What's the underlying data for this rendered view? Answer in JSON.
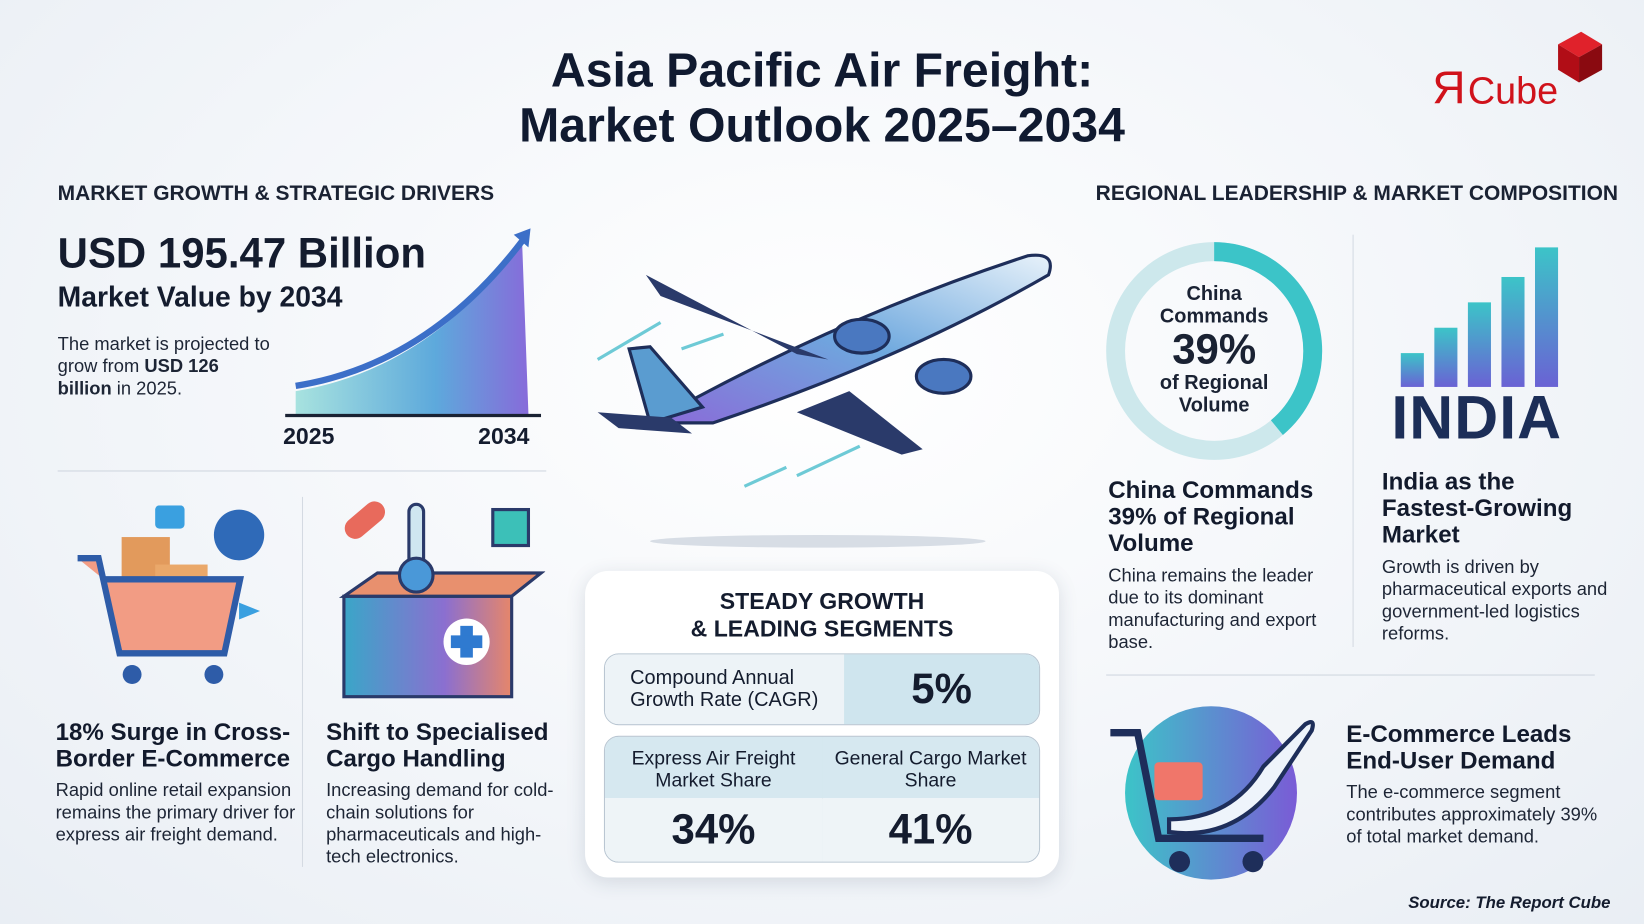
{
  "title": {
    "line1": "Asia Pacific Air Freight:",
    "line2": "Market Outlook 2025–2034"
  },
  "logo": {
    "text": "ЯCube",
    "color": "#d0121b"
  },
  "left": {
    "section_title": "MARKET GROWTH & STRATEGIC DRIVERS",
    "headline": "USD 195.47 Billion",
    "subheadline": "Market Value by 2034",
    "desc_pre": "The market is projected to grow from ",
    "desc_bold": "USD 126 billion",
    "desc_post": " in 2025.",
    "chart_start": "2025",
    "chart_end": "2034",
    "cards": [
      {
        "title": "18% Surge in Cross-Border E-Commerce",
        "text": "Rapid online retail expansion remains the primary driver for express air freight demand.",
        "icon": "shopping-cart-icon"
      },
      {
        "title": "Shift to Specialised Cargo Handling",
        "text": "Increasing demand for cold-chain solutions for pharmaceuticals and high-tech electronics.",
        "icon": "cargo-container-icon"
      }
    ]
  },
  "center": {
    "plane_icon": "airplane-icon",
    "card_title_1": "STEADY GROWTH",
    "card_title_2": "& LEADING SEGMENTS",
    "cagr_label": "Compound Annual Growth Rate (CAGR)",
    "cagr_value": "5%",
    "segments": [
      {
        "label": "Express Air Freight Market Share",
        "value": "34%"
      },
      {
        "label": "General Cargo Market Share",
        "value": "41%"
      }
    ]
  },
  "right": {
    "section_title": "REGIONAL LEADERSHIP & MARKET COMPOSITION",
    "donut": {
      "line1": "China",
      "line2": "Commands",
      "value": "39%",
      "line3": "of Regional",
      "line4": "Volume",
      "share_percent": 39,
      "colors": [
        "#3cc4c8",
        "#7b5fd6",
        "#cde8ec"
      ]
    },
    "china": {
      "title": "China Commands 39% of Regional Volume",
      "text": "China remains the leader due to its dominant manufacturing and export base."
    },
    "india": {
      "word": "INDIA",
      "title": "India as the Fastest-Growing Market",
      "text": "Growth is driven by pharmaceutical exports and government-led logistics reforms."
    },
    "ecommerce": {
      "title": "E-Commerce Leads End-User Demand",
      "text": "The e-commerce segment contributes approximately 39% of total market demand."
    }
  },
  "footer": {
    "source": "Source: The Report Cube"
  }
}
